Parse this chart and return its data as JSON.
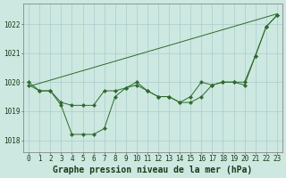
{
  "bg_color": "#cce8e0",
  "grid_color": "#aacccc",
  "line_color": "#2d6a2d",
  "marker_color": "#2d6a2d",
  "xlabel": "Graphe pression niveau de la mer (hPa)",
  "xlabel_fontsize": 7,
  "tick_fontsize": 5.5,
  "ytick_labels": [
    1018,
    1019,
    1020,
    1021,
    1022
  ],
  "xtick_labels": [
    0,
    1,
    2,
    3,
    4,
    5,
    6,
    7,
    8,
    9,
    10,
    11,
    12,
    13,
    14,
    15,
    16,
    17,
    18,
    19,
    20,
    21,
    22,
    23
  ],
  "ylim": [
    1017.6,
    1022.7
  ],
  "xlim": [
    -0.5,
    23.5
  ],
  "series1": [
    1019.9,
    1019.7,
    1019.7,
    1019.2,
    1018.2,
    1018.2,
    1018.2,
    1018.4,
    1019.5,
    1019.8,
    1019.9,
    1019.7,
    1019.5,
    1019.5,
    1019.3,
    1019.3,
    1019.5,
    1019.9,
    1020.0,
    1020.0,
    1019.9,
    1020.9,
    1021.9,
    1022.3
  ],
  "series2": [
    1020.0,
    1019.7,
    1019.7,
    1019.3,
    1019.2,
    1019.2,
    1019.2,
    1019.7,
    1019.7,
    1019.8,
    1020.0,
    1019.7,
    1019.5,
    1019.5,
    1019.3,
    1019.5,
    1020.0,
    1019.9,
    1020.0,
    1020.0,
    1020.0,
    1020.9,
    1021.9,
    1022.3
  ],
  "series3_x": [
    0,
    23
  ],
  "series3_y": [
    1019.85,
    1022.35
  ]
}
